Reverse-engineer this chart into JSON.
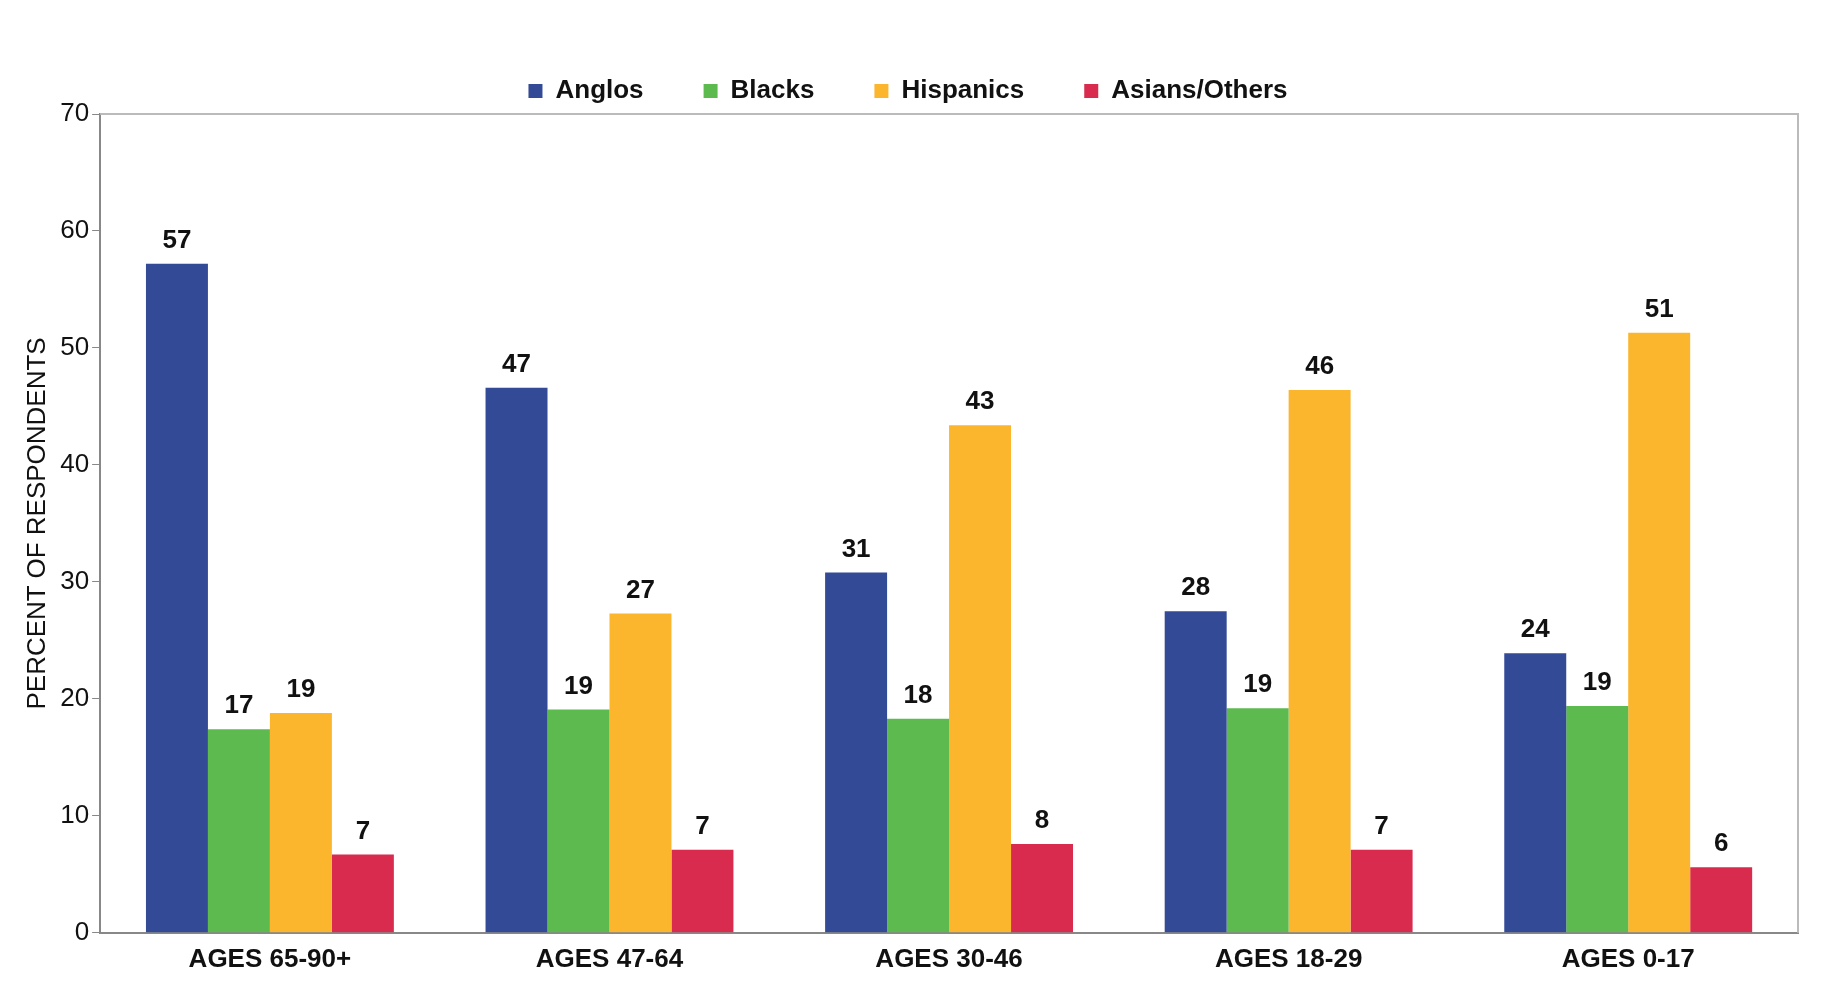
{
  "chart_data": {
    "type": "bar",
    "ylabel": "PERCENT OF RESPONDENTS",
    "categories": [
      "AGES 65-90+",
      "AGES 47-64",
      "AGES 30-46",
      "AGES 18-29",
      "AGES 0-17"
    ],
    "series": [
      {
        "name": "Anglos",
        "color": "#334a96",
        "values": [
          57.2,
          46.6,
          30.8,
          27.5,
          23.9
        ],
        "value_labels": [
          "57",
          "47",
          "31",
          "28",
          "24"
        ]
      },
      {
        "name": "Blacks",
        "color": "#5dba4f",
        "values": [
          17.4,
          19.1,
          18.3,
          19.2,
          19.4
        ],
        "value_labels": [
          "17",
          "19",
          "18",
          "19",
          "19"
        ]
      },
      {
        "name": "Hispanics",
        "color": "#fbb62e",
        "values": [
          18.8,
          27.3,
          43.4,
          46.4,
          51.3
        ],
        "value_labels": [
          "19",
          "27",
          "43",
          "46",
          "51"
        ]
      },
      {
        "name": "Asians/Others",
        "color": "#d82b4e",
        "values": [
          6.7,
          7.1,
          7.6,
          7.1,
          5.6
        ],
        "value_labels": [
          "7",
          "7",
          "8",
          "7",
          "6"
        ]
      }
    ],
    "ylim": [
      0,
      70
    ],
    "yticks": [
      0,
      10,
      20,
      30,
      40,
      50,
      60,
      70
    ],
    "grid": false,
    "legend": "top"
  }
}
